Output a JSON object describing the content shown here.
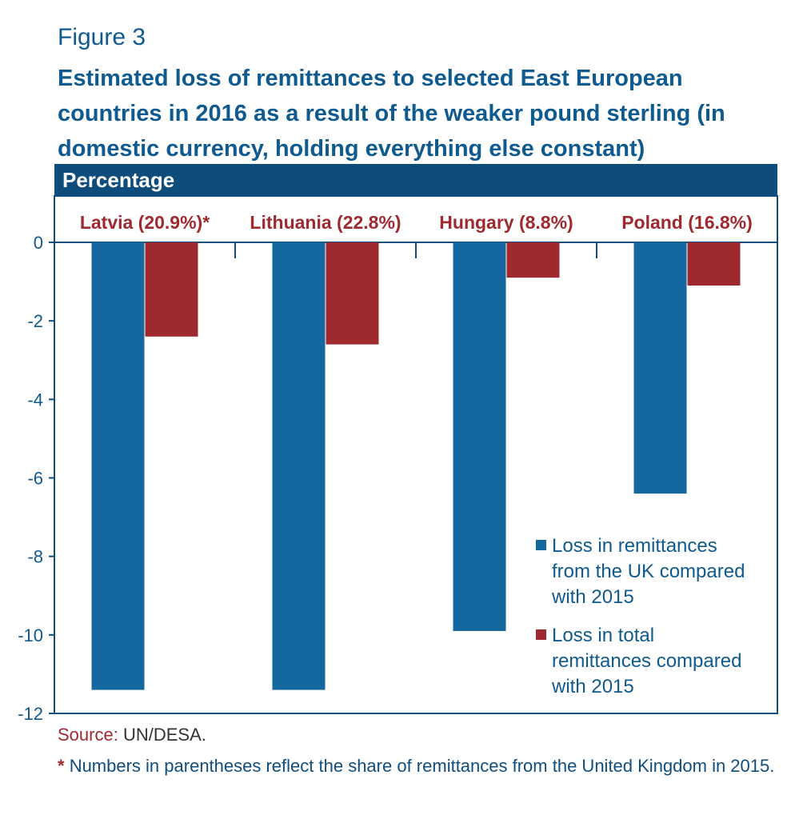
{
  "figure_label": "Figure 3",
  "title": "Estimated loss of remittances to selected East European countries in 2016 as a result of the weaker pound sterling (in domestic currency, holding everything else constant)",
  "header": "Percentage",
  "source_label": "Source:",
  "source_text": "UN/DESA.",
  "note_star": "*",
  "note_text": "Numbers in parentheses reflect the share of remittances from the United Kingdom in 2015.",
  "colors": {
    "uk": "#14679f",
    "total": "#9e2a2f",
    "header": "#0e4d7b",
    "text": "#0f5a8f"
  },
  "chart_data": {
    "type": "bar",
    "categories": [
      "Latvia (20.9%)*",
      "Lithuania (22.8%)",
      "Hungary (8.8%)",
      "Poland (16.8%)"
    ],
    "series": [
      {
        "name": "Loss in remittances from the UK compared with 2015",
        "color": "#14679f",
        "values": [
          -11.4,
          -11.4,
          -9.9,
          -6.4
        ]
      },
      {
        "name": "Loss in total remittances compared with 2015",
        "color": "#9e2a2f",
        "values": [
          -2.4,
          -2.6,
          -0.9,
          -1.1
        ]
      }
    ],
    "ylim": [
      -12,
      0
    ],
    "yticks": [
      "0",
      "-2",
      "-4",
      "-6",
      "-8",
      "-10",
      "-12"
    ],
    "legend_position": "bottom-right"
  }
}
